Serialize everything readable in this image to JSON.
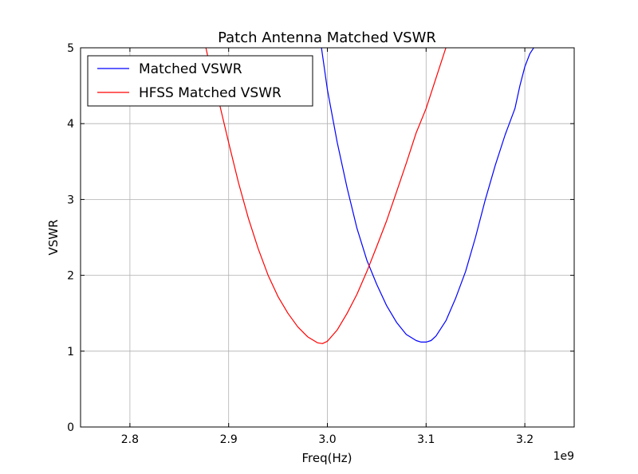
{
  "chart_data": {
    "type": "line",
    "title": "Patch Antenna Matched VSWR",
    "xlabel": "Freq(Hz)",
    "ylabel": "VSWR",
    "x_offset_label": "1e9",
    "xlim": [
      2.75,
      3.25
    ],
    "ylim": [
      0,
      5
    ],
    "x_ticks": [
      2.8,
      2.9,
      3.0,
      3.1,
      3.2
    ],
    "x_tick_labels": [
      "2.8",
      "2.9",
      "3.0",
      "3.1",
      "3.2"
    ],
    "y_ticks": [
      0,
      1,
      2,
      3,
      4,
      5
    ],
    "y_tick_labels": [
      "0",
      "1",
      "2",
      "3",
      "4",
      "5"
    ],
    "grid": true,
    "legend_position": "upper-left",
    "series": [
      {
        "name": "Matched VSWR",
        "color": "#0000ff",
        "x": [
          2.994,
          3.0,
          3.01,
          3.02,
          3.03,
          3.04,
          3.05,
          3.06,
          3.07,
          3.08,
          3.09,
          3.095,
          3.1,
          3.105,
          3.11,
          3.12,
          3.13,
          3.14,
          3.15,
          3.16,
          3.17,
          3.18,
          3.19,
          3.195,
          3.2,
          3.205,
          3.209
        ],
        "y": [
          5.0,
          4.45,
          3.75,
          3.15,
          2.62,
          2.2,
          1.88,
          1.6,
          1.38,
          1.22,
          1.14,
          1.12,
          1.12,
          1.14,
          1.2,
          1.4,
          1.7,
          2.05,
          2.5,
          3.0,
          3.45,
          3.85,
          4.2,
          4.5,
          4.75,
          4.92,
          5.0
        ]
      },
      {
        "name": "HFSS Matched VSWR",
        "color": "#ff0000",
        "x": [
          2.877,
          2.88,
          2.89,
          2.9,
          2.91,
          2.92,
          2.93,
          2.94,
          2.95,
          2.96,
          2.97,
          2.98,
          2.99,
          2.995,
          3.0,
          3.01,
          3.02,
          3.03,
          3.04,
          3.05,
          3.06,
          3.07,
          3.08,
          3.09,
          3.1,
          3.11,
          3.12
        ],
        "y": [
          5.0,
          4.82,
          4.3,
          3.75,
          3.22,
          2.75,
          2.35,
          2.0,
          1.72,
          1.5,
          1.32,
          1.19,
          1.11,
          1.1,
          1.13,
          1.28,
          1.5,
          1.75,
          2.05,
          2.38,
          2.72,
          3.1,
          3.48,
          3.88,
          4.2,
          4.6,
          5.0
        ]
      }
    ]
  }
}
